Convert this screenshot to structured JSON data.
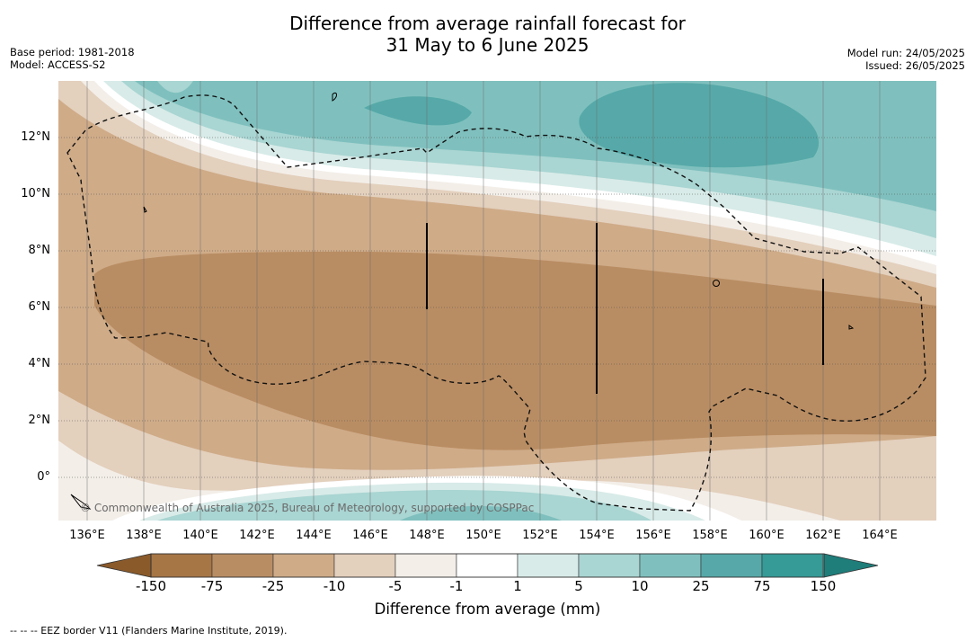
{
  "title_line1": "Difference from average rainfall forecast for",
  "title_line2": "31 May to 6 June 2025",
  "meta_left": {
    "base_period": "Base period: 1981-2018",
    "model": "Model: ACCESS-S2"
  },
  "meta_right": {
    "model_run": "Model run: 24/05/2025",
    "issued": "Issued: 26/05/2025"
  },
  "map": {
    "lat_labels": [
      "12°N",
      "10°N",
      "8°N",
      "6°N",
      "4°N",
      "2°N",
      "0°"
    ],
    "lon_labels": [
      "136°E",
      "138°E",
      "140°E",
      "142°E",
      "144°E",
      "146°E",
      "148°E",
      "150°E",
      "152°E",
      "154°E",
      "156°E",
      "158°E",
      "160°E",
      "162°E",
      "164°E"
    ],
    "copyright": "© Commonwealth of Australia 2025, Bureau of Meteorology, supported by COSPPac"
  },
  "colorbar": {
    "labels": [
      "-150",
      "-75",
      "-25",
      "-10",
      "-5",
      "-1",
      "1",
      "5",
      "10",
      "25",
      "75",
      "150"
    ],
    "colors": [
      "#a67645",
      "#b98d63",
      "#cfab88",
      "#e3d0bd",
      "#f3eee8",
      "#ffffff",
      "#d8ebe8",
      "#a9d5d2",
      "#7fc0be",
      "#56a9a8",
      "#369a97"
    ],
    "low_extend_color": "#8a5a2b",
    "high_extend_color": "#1f7d7a",
    "title": "Difference from average (mm)"
  },
  "footer": "--  --  -- EEZ border V11 (Flanders Marine Institute, 2019)."
}
